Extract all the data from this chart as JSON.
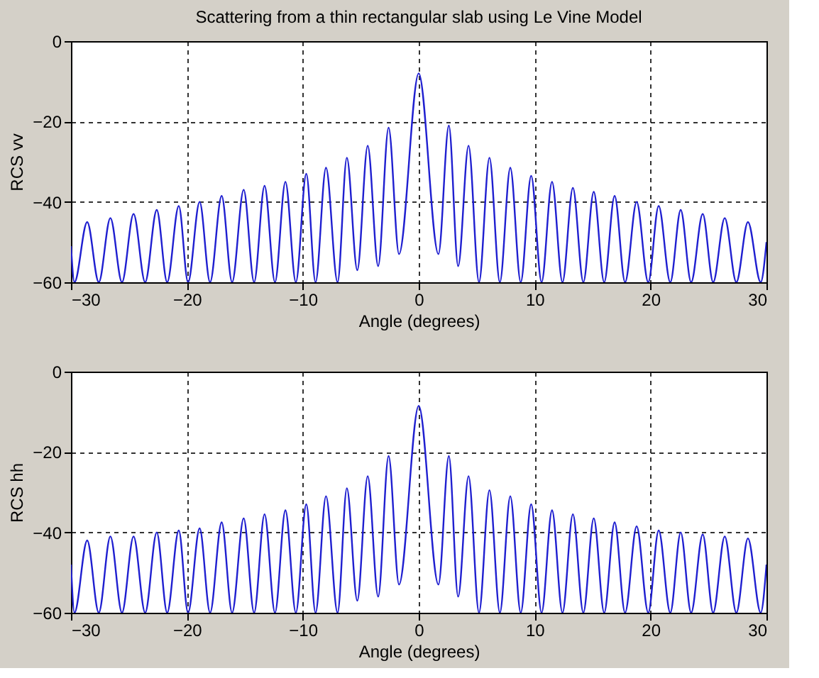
{
  "chart_data": [
    {
      "type": "line",
      "title": "Scattering from a thin rectangular slab using Le Vine Model",
      "xlabel": "Angle (degrees)",
      "ylabel": "RCS vv",
      "xlim": [
        -30,
        30
      ],
      "ylim": [
        -60,
        0
      ],
      "xticks": [
        -30,
        -20,
        -10,
        0,
        10,
        20,
        30
      ],
      "yticks": [
        -60,
        -40,
        -20,
        0
      ],
      "grid": true,
      "marker": "none",
      "line_style": "solid",
      "x": [
        -30,
        -29.7,
        -28.6,
        -27.6,
        -26.6,
        -25.6,
        -24.6,
        -23.6,
        -22.6,
        -21.7,
        -20.7,
        -19.9,
        -18.9,
        -18,
        -17,
        -16.1,
        -15.1,
        -14.2,
        -13.3,
        -12.4,
        -11.5,
        -10.6,
        -9.7,
        -8.9,
        -8,
        -7,
        -6.2,
        -5.3,
        -4.4,
        -3.5,
        -2.6,
        -1.7,
        0,
        1.7,
        2.6,
        3.4,
        4.3,
        5.2,
        6.1,
        7,
        7.9,
        8.8,
        9.7,
        10.6,
        11.5,
        12.4,
        13.3,
        14.2,
        15.1,
        16,
        16.9,
        17.8,
        18.8,
        19.8,
        20.7,
        21.7,
        22.6,
        23.5,
        24.5,
        25.4,
        26.4,
        27.4,
        28.4,
        29.5,
        30
      ],
      "series": [
        {
          "color": "#1f1fd0",
          "values": [
            -51,
            -60,
            -45,
            -60,
            -44,
            -60,
            -43,
            -60,
            -42,
            -60,
            -41,
            -60,
            -40,
            -60,
            -38.5,
            -60,
            -37,
            -60,
            -36,
            -60,
            -35,
            -60,
            -33,
            -60,
            -31.5,
            -60,
            -29,
            -57,
            -26,
            -56,
            -21.5,
            -53,
            -8,
            -53,
            -21,
            -56,
            -26,
            -60,
            -29,
            -60,
            -31.5,
            -60,
            -33.5,
            -60,
            -35,
            -60,
            -36.5,
            -60,
            -37.5,
            -60,
            -38.5,
            -60,
            -40,
            -60,
            -41,
            -60,
            -42,
            -60,
            -43,
            -60,
            -44,
            -60,
            -45,
            -60,
            -50
          ]
        }
      ]
    },
    {
      "type": "line",
      "xlabel": "Angle (degrees)",
      "ylabel": "RCS hh",
      "xlim": [
        -30,
        30
      ],
      "ylim": [
        -60,
        0
      ],
      "xticks": [
        -30,
        -20,
        -10,
        0,
        10,
        20,
        30
      ],
      "yticks": [
        -60,
        -40,
        -20,
        0
      ],
      "grid": true,
      "marker": "none",
      "line_style": "solid",
      "x": [
        -30,
        -29.7,
        -28.6,
        -27.6,
        -26.6,
        -25.6,
        -24.6,
        -23.6,
        -22.6,
        -21.7,
        -20.7,
        -19.9,
        -18.9,
        -18,
        -17,
        -16.1,
        -15.1,
        -14.2,
        -13.3,
        -12.4,
        -11.5,
        -10.6,
        -9.7,
        -8.9,
        -8,
        -7,
        -6.2,
        -5.3,
        -4.4,
        -3.5,
        -2.6,
        -1.7,
        0,
        1.7,
        2.6,
        3.4,
        4.3,
        5.2,
        6.1,
        7,
        7.9,
        8.8,
        9.7,
        10.6,
        11.5,
        12.4,
        13.3,
        14.2,
        15.1,
        16,
        16.9,
        17.8,
        18.8,
        19.8,
        20.7,
        21.7,
        22.6,
        23.5,
        24.5,
        25.4,
        26.4,
        27.4,
        28.4,
        29.5,
        30
      ],
      "series": [
        {
          "color": "#1f1fd0",
          "values": [
            -48,
            -60,
            -42,
            -60,
            -41,
            -60,
            -41,
            -60,
            -40,
            -60,
            -39.5,
            -60,
            -39,
            -60,
            -37.5,
            -60,
            -36.5,
            -60,
            -35.5,
            -60,
            -34.5,
            -60,
            -33,
            -60,
            -31,
            -60,
            -29,
            -57,
            -26,
            -56,
            -21,
            -53,
            -8.5,
            -53,
            -21,
            -56,
            -26,
            -60,
            -29.5,
            -60,
            -31,
            -60,
            -33,
            -60,
            -34.5,
            -60,
            -35.5,
            -60,
            -36.5,
            -60,
            -37.5,
            -60,
            -38.5,
            -60,
            -39.5,
            -60,
            -40,
            -60,
            -40.5,
            -60,
            -41,
            -60,
            -41.5,
            -60,
            -48
          ]
        }
      ]
    }
  ]
}
